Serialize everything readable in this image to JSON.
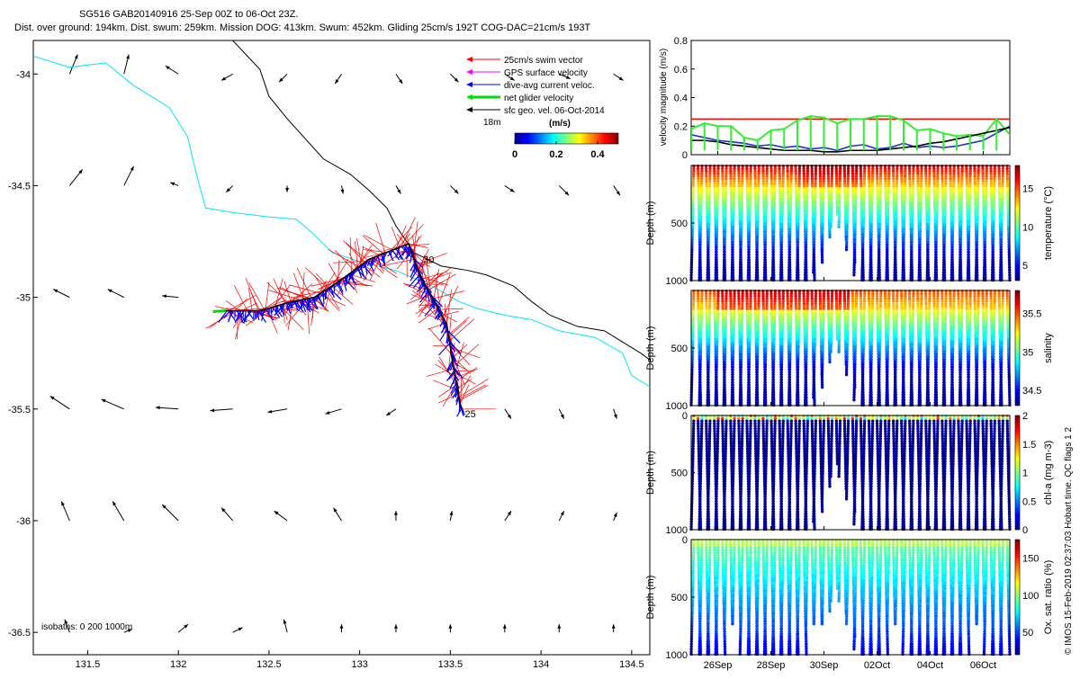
{
  "header": {
    "line1": "SG516 GAB20140916 25-Sep 00Z to 06-Oct 23Z.",
    "line2": "Dist. over ground: 194km. Dist. swum: 259km. Mission DOG: 413km. Swum: 452km. Gliding 25cm/s 192T COG-DAC=21cm/s 193T"
  },
  "side_note": "© IMOS 15-Feb-2019 02:37:03 Hobart time. QC flags 1  2",
  "colors": {
    "swim": "#ff0000",
    "gps": "#ff00ff",
    "dac": "#0000ff",
    "net": "#00dd00",
    "sfc": "#000000",
    "coast": "#00e5ff",
    "isobath": "#000000",
    "limit": "#ff0000",
    "vel_green": "#33ee33",
    "vel_blue": "#1a33cc"
  },
  "map": {
    "legend": [
      {
        "label": "25cm/s swim vector",
        "color": "#ff0000"
      },
      {
        "label": "GPS surface velocity",
        "color": "#ff00ff"
      },
      {
        "label": "dive-avg current veloc.",
        "color": "#0000ff"
      },
      {
        "label": "net glider velocity",
        "color": "#00dd00"
      },
      {
        "label": "sfc geo. vel. 06-Oct-2014",
        "color": "#000000"
      }
    ],
    "label_18m": "18m",
    "colorbar": {
      "title": "(m/s)",
      "ticks": [
        "0",
        "0.2",
        "0.4"
      ],
      "vmin": 0,
      "vmax": 0.5
    },
    "isobath_note": "isobaths: 0   200   1000m",
    "day_labels": [
      {
        "text": "25",
        "lon": 133.56,
        "lat": -35.52
      },
      {
        "text": "30",
        "lon": 133.33,
        "lat": -34.83
      }
    ]
  },
  "chart_data": [
    {
      "type": "line",
      "name": "map",
      "xlim": [
        131.2,
        134.6
      ],
      "ylim": [
        -36.6,
        -33.85
      ],
      "xticks": [
        131.5,
        132,
        132.5,
        133,
        133.5,
        134,
        134.5
      ],
      "xtick_labels": [
        "131.5",
        "132",
        "132.5",
        "133",
        "133.5",
        "134",
        "134.5"
      ],
      "yticks": [
        -34,
        -34.5,
        -35,
        -35.5,
        -36,
        -36.5
      ],
      "ytick_labels": [
        "-34",
        "-34.5",
        "-35",
        "-35.5",
        "-36",
        "-36.5"
      ],
      "glider_track": [
        [
          133.56,
          -35.5
        ],
        [
          133.52,
          -35.33
        ],
        [
          133.48,
          -35.12
        ],
        [
          133.4,
          -35.0
        ],
        [
          133.33,
          -34.9
        ],
        [
          133.27,
          -34.76
        ],
        [
          133.05,
          -34.83
        ],
        [
          132.9,
          -34.92
        ],
        [
          132.75,
          -35.0
        ],
        [
          132.62,
          -35.02
        ],
        [
          132.45,
          -35.06
        ],
        [
          132.26,
          -35.06
        ]
      ],
      "coastline": [
        [
          131.2,
          -33.92
        ],
        [
          131.4,
          -33.97
        ],
        [
          131.6,
          -33.95
        ],
        [
          131.75,
          -34.05
        ],
        [
          131.95,
          -34.15
        ],
        [
          132.05,
          -34.28
        ],
        [
          132.1,
          -34.45
        ],
        [
          132.15,
          -34.6
        ],
        [
          132.3,
          -34.62
        ],
        [
          132.5,
          -34.64
        ],
        [
          132.65,
          -34.65
        ],
        [
          132.75,
          -34.72
        ],
        [
          132.85,
          -34.8
        ],
        [
          133.0,
          -34.84
        ],
        [
          133.2,
          -34.88
        ],
        [
          133.4,
          -34.95
        ],
        [
          133.55,
          -35.02
        ],
        [
          133.65,
          -35.05
        ],
        [
          133.8,
          -35.08
        ],
        [
          133.95,
          -35.1
        ],
        [
          134.1,
          -35.15
        ],
        [
          134.3,
          -35.18
        ],
        [
          134.45,
          -35.25
        ],
        [
          134.5,
          -35.35
        ],
        [
          134.6,
          -35.4
        ]
      ],
      "isobath_200m": [
        [
          132.3,
          -33.85
        ],
        [
          132.45,
          -33.98
        ],
        [
          132.5,
          -34.1
        ],
        [
          132.6,
          -34.2
        ],
        [
          132.8,
          -34.38
        ],
        [
          132.95,
          -34.45
        ],
        [
          133.05,
          -34.52
        ],
        [
          133.15,
          -34.6
        ],
        [
          133.2,
          -34.68
        ],
        [
          133.3,
          -34.8
        ],
        [
          133.45,
          -34.86
        ],
        [
          133.6,
          -34.88
        ],
        [
          133.7,
          -34.9
        ],
        [
          133.85,
          -34.95
        ],
        [
          133.95,
          -35.02
        ],
        [
          134.05,
          -35.08
        ],
        [
          134.2,
          -35.13
        ],
        [
          134.35,
          -35.15
        ],
        [
          134.45,
          -35.2
        ],
        [
          134.55,
          -35.25
        ],
        [
          134.6,
          -35.28
        ]
      ],
      "vectors_18m": [
        [
          131.4,
          -34.0,
          0.05,
          0.12
        ],
        [
          131.4,
          -34.5,
          0.08,
          0.1
        ],
        [
          131.4,
          -35.0,
          -0.1,
          0.05
        ],
        [
          131.4,
          -35.5,
          -0.12,
          0.08
        ],
        [
          131.4,
          -36.0,
          -0.05,
          0.12
        ],
        [
          131.4,
          -36.5,
          -0.03,
          0.08
        ],
        [
          131.7,
          -34.0,
          0.03,
          0.12
        ],
        [
          131.7,
          -34.5,
          0.06,
          0.12
        ],
        [
          131.7,
          -35.0,
          -0.1,
          0.05
        ],
        [
          131.7,
          -35.5,
          -0.14,
          0.06
        ],
        [
          131.7,
          -36.0,
          -0.07,
          0.12
        ],
        [
          131.7,
          -36.5,
          0.05,
          0.02
        ],
        [
          132.0,
          -34.0,
          -0.08,
          0.05
        ],
        [
          132.0,
          -34.5,
          -0.05,
          0.02
        ],
        [
          132.0,
          -35.0,
          -0.1,
          0.01
        ],
        [
          132.0,
          -35.5,
          -0.14,
          0.01
        ],
        [
          132.0,
          -36.0,
          -0.1,
          0.1
        ],
        [
          132.0,
          -36.5,
          0.06,
          0.05
        ],
        [
          132.3,
          -34.0,
          -0.07,
          -0.04
        ],
        [
          132.3,
          -34.5,
          -0.04,
          -0.04
        ],
        [
          132.3,
          -35.5,
          -0.14,
          -0.01
        ],
        [
          132.3,
          -36.0,
          -0.07,
          0.08
        ],
        [
          132.3,
          -36.5,
          0.06,
          0.03
        ],
        [
          132.6,
          -34.0,
          -0.05,
          -0.05
        ],
        [
          132.6,
          -34.5,
          0.0,
          -0.04
        ],
        [
          132.6,
          -35.5,
          -0.12,
          -0.02
        ],
        [
          132.6,
          -36.0,
          -0.08,
          0.06
        ],
        [
          132.6,
          -36.5,
          -0.02,
          0.08
        ],
        [
          132.9,
          -34.0,
          -0.04,
          -0.06
        ],
        [
          132.9,
          -34.5,
          0.01,
          -0.05
        ],
        [
          132.9,
          -35.5,
          -0.1,
          -0.03
        ],
        [
          132.9,
          -36.0,
          -0.05,
          0.08
        ],
        [
          132.9,
          -36.5,
          0.0,
          0.05
        ],
        [
          133.2,
          -34.0,
          0.04,
          -0.06
        ],
        [
          133.2,
          -34.5,
          0.03,
          -0.05
        ],
        [
          133.2,
          -35.5,
          -0.06,
          -0.04
        ],
        [
          133.2,
          -36.0,
          0.0,
          0.06
        ],
        [
          133.2,
          -36.5,
          0.0,
          0.05
        ],
        [
          133.5,
          -34.0,
          0.05,
          -0.05
        ],
        [
          133.5,
          -34.5,
          0.05,
          -0.05
        ],
        [
          133.8,
          -35.5,
          0.04,
          -0.06
        ],
        [
          133.5,
          -36.0,
          0.01,
          0.06
        ],
        [
          133.5,
          -36.5,
          0.0,
          0.05
        ],
        [
          133.8,
          -34.0,
          0.06,
          -0.04
        ],
        [
          133.8,
          -34.5,
          0.06,
          -0.04
        ],
        [
          134.1,
          -35.5,
          0.03,
          -0.06
        ],
        [
          133.8,
          -36.0,
          0.04,
          0.06
        ],
        [
          133.8,
          -36.5,
          0.0,
          0.05
        ],
        [
          134.1,
          -34.0,
          0.07,
          -0.03
        ],
        [
          134.1,
          -34.5,
          0.06,
          -0.06
        ],
        [
          134.4,
          -35.5,
          0.02,
          -0.06
        ],
        [
          134.1,
          -36.0,
          0.03,
          0.06
        ],
        [
          134.1,
          -36.5,
          0.0,
          0.05
        ],
        [
          134.4,
          -34.0,
          0.06,
          -0.04
        ],
        [
          134.4,
          -34.5,
          0.04,
          -0.06
        ],
        [
          134.4,
          -36.0,
          0.02,
          0.05
        ],
        [
          134.4,
          -36.5,
          0.0,
          0.05
        ]
      ]
    },
    {
      "type": "line",
      "name": "velocity",
      "ylabel": "velocity magnitude (m/s)",
      "ylim": [
        0,
        0.8
      ],
      "yticks": [
        0,
        0.2,
        0.4,
        0.6,
        0.8
      ],
      "ytick_labels": [
        "0",
        "0.2",
        "0.4",
        "0.6",
        "0.8"
      ],
      "swim_speed_line": 0.25,
      "t": [
        0,
        0.5,
        1,
        1.5,
        2,
        2.5,
        3,
        3.5,
        4,
        4.5,
        5,
        5.5,
        6,
        6.5,
        7,
        7.5,
        8,
        8.5,
        9,
        9.5,
        10,
        10.5,
        11,
        11.5,
        12
      ],
      "series": [
        {
          "values": [
            0.18,
            0.22,
            0.2,
            0.2,
            0.12,
            0.1,
            0.17,
            0.18,
            0.24,
            0.27,
            0.26,
            0.22,
            0.25,
            0.25,
            0.27,
            0.27,
            0.24,
            0.17,
            0.18,
            0.15,
            0.13,
            0.14,
            0.13,
            0.25,
            0.14
          ]
        },
        {
          "values": [
            0.14,
            0.12,
            0.1,
            0.09,
            0.08,
            0.06,
            0.07,
            0.05,
            0.06,
            0.04,
            0.05,
            0.03,
            0.06,
            0.07,
            0.04,
            0.05,
            0.08,
            0.05,
            0.06,
            0.05,
            0.06,
            0.08,
            0.1,
            0.15,
            0.2
          ]
        },
        {
          "values": [
            0.1,
            0.1,
            0.09,
            0.07,
            0.06,
            0.05,
            0.04,
            0.03,
            0.03,
            0.03,
            0.02,
            0.02,
            0.03,
            0.03,
            0.03,
            0.04,
            0.05,
            0.06,
            0.08,
            0.09,
            0.11,
            0.13,
            0.15,
            0.17,
            0.19
          ]
        }
      ]
    },
    {
      "type": "scatter",
      "name": "temperature",
      "ylabel": "Depth (m)",
      "ylim": [
        0,
        1000
      ],
      "yticks": [
        500,
        1000
      ],
      "ytick_labels": [
        "500",
        "1000"
      ],
      "clabel": "temperature (°C)",
      "clim": [
        3,
        18
      ],
      "cticks": [
        5,
        10,
        15
      ],
      "ctick_labels": [
        "5",
        "10",
        "15"
      ]
    },
    {
      "type": "scatter",
      "name": "salinity",
      "ylabel": "Depth (m)",
      "ylim": [
        0,
        1000
      ],
      "yticks": [
        500,
        1000
      ],
      "ytick_labels": [
        "500",
        "1000"
      ],
      "clabel": "salinity",
      "clim": [
        34.3,
        35.8
      ],
      "cticks": [
        34.5,
        35,
        35.5
      ],
      "ctick_labels": [
        "34.5",
        "35",
        "35.5"
      ]
    },
    {
      "type": "scatter",
      "name": "chla",
      "ylabel": "Depth (m)",
      "ylim": [
        0,
        1000
      ],
      "yticks": [
        0,
        500,
        1000
      ],
      "ytick_labels": [
        "0",
        "500",
        "1000"
      ],
      "clabel": "chl-a (mg m-3)",
      "clim": [
        0,
        2
      ],
      "cticks": [
        0,
        0.5,
        1,
        1.5,
        2
      ],
      "ctick_labels": [
        "0",
        "0.5",
        "1",
        "1.5",
        "2"
      ]
    },
    {
      "type": "scatter",
      "name": "oxsat",
      "ylabel": "Depth (m)",
      "ylim": [
        0,
        1000
      ],
      "yticks": [
        0,
        500,
        1000
      ],
      "ytick_labels": [
        "0",
        "500",
        "1000"
      ],
      "clabel": "Ox. sat. ratio (%)",
      "clim": [
        20,
        175
      ],
      "cticks": [
        50,
        100,
        150
      ],
      "ctick_labels": [
        "50",
        "100",
        "150"
      ]
    }
  ],
  "time_axis": {
    "start": "25-Sep",
    "days": 12,
    "ticks": [
      1,
      3,
      5,
      7,
      9,
      11
    ],
    "tick_labels": [
      "26Sep",
      "28Sep",
      "30Sep",
      "02Oct",
      "04Oct",
      "06Oct"
    ]
  }
}
